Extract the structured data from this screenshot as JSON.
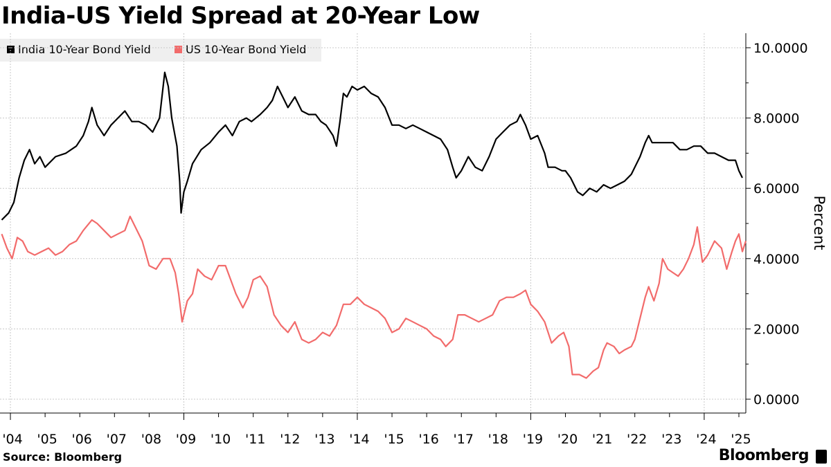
{
  "chart_data": {
    "type": "line",
    "title": "India-US Yield Spread at 20-Year Low",
    "ylabel": "Percent",
    "xlabel": "",
    "ylim": [
      -0.3,
      10.3
    ],
    "y_ticks": [
      "10.0000",
      "8.0000",
      "6.0000",
      "4.0000",
      "2.0000",
      "0.0000"
    ],
    "y_tick_values": [
      10,
      8,
      6,
      4,
      2,
      0
    ],
    "x_ticks": [
      "'04",
      "'05",
      "'06",
      "'07",
      "'08",
      "'09",
      "'10",
      "'11",
      "'12",
      "'13",
      "'14",
      "'15",
      "'16",
      "'17",
      "'18",
      "'19",
      "'20",
      "'21",
      "'22",
      "'23",
      "'24",
      "'25"
    ],
    "x_tick_values": [
      2004,
      2005,
      2006,
      2007,
      2008,
      2009,
      2010,
      2011,
      2012,
      2013,
      2014,
      2015,
      2016,
      2017,
      2018,
      2019,
      2020,
      2021,
      2022,
      2023,
      2024,
      2025
    ],
    "xlim": [
      2003.7,
      2025.2
    ],
    "grid": true,
    "legend_position": "top-left",
    "series": [
      {
        "name": "India 10-Year Bond Yield",
        "color": "#000000",
        "points": [
          [
            2003.75,
            5.1
          ],
          [
            2003.95,
            5.3
          ],
          [
            2004.1,
            5.6
          ],
          [
            2004.25,
            6.3
          ],
          [
            2004.4,
            6.8
          ],
          [
            2004.55,
            7.1
          ],
          [
            2004.7,
            6.7
          ],
          [
            2004.85,
            6.9
          ],
          [
            2005.0,
            6.6
          ],
          [
            2005.3,
            6.9
          ],
          [
            2005.6,
            7.0
          ],
          [
            2005.9,
            7.2
          ],
          [
            2006.1,
            7.5
          ],
          [
            2006.25,
            7.9
          ],
          [
            2006.35,
            8.3
          ],
          [
            2006.5,
            7.8
          ],
          [
            2006.7,
            7.5
          ],
          [
            2006.9,
            7.8
          ],
          [
            2007.1,
            8.0
          ],
          [
            2007.3,
            8.2
          ],
          [
            2007.5,
            7.9
          ],
          [
            2007.7,
            7.9
          ],
          [
            2007.9,
            7.8
          ],
          [
            2008.1,
            7.6
          ],
          [
            2008.3,
            8.0
          ],
          [
            2008.45,
            9.3
          ],
          [
            2008.55,
            8.9
          ],
          [
            2008.65,
            8.0
          ],
          [
            2008.8,
            7.2
          ],
          [
            2008.88,
            6.2
          ],
          [
            2008.92,
            5.3
          ],
          [
            2009.0,
            5.9
          ],
          [
            2009.1,
            6.2
          ],
          [
            2009.25,
            6.7
          ],
          [
            2009.5,
            7.1
          ],
          [
            2009.75,
            7.3
          ],
          [
            2010.0,
            7.6
          ],
          [
            2010.2,
            7.8
          ],
          [
            2010.4,
            7.5
          ],
          [
            2010.6,
            7.9
          ],
          [
            2010.8,
            8.0
          ],
          [
            2010.95,
            7.9
          ],
          [
            2011.2,
            8.1
          ],
          [
            2011.4,
            8.3
          ],
          [
            2011.55,
            8.5
          ],
          [
            2011.7,
            8.9
          ],
          [
            2011.85,
            8.6
          ],
          [
            2012.0,
            8.3
          ],
          [
            2012.2,
            8.6
          ],
          [
            2012.4,
            8.2
          ],
          [
            2012.6,
            8.1
          ],
          [
            2012.8,
            8.1
          ],
          [
            2012.95,
            7.9
          ],
          [
            2013.1,
            7.8
          ],
          [
            2013.3,
            7.5
          ],
          [
            2013.4,
            7.2
          ],
          [
            2013.5,
            7.9
          ],
          [
            2013.6,
            8.7
          ],
          [
            2013.7,
            8.6
          ],
          [
            2013.85,
            8.9
          ],
          [
            2014.0,
            8.8
          ],
          [
            2014.2,
            8.9
          ],
          [
            2014.4,
            8.7
          ],
          [
            2014.6,
            8.6
          ],
          [
            2014.8,
            8.3
          ],
          [
            2015.0,
            7.8
          ],
          [
            2015.2,
            7.8
          ],
          [
            2015.4,
            7.7
          ],
          [
            2015.6,
            7.8
          ],
          [
            2015.8,
            7.7
          ],
          [
            2016.0,
            7.6
          ],
          [
            2016.2,
            7.5
          ],
          [
            2016.4,
            7.4
          ],
          [
            2016.6,
            7.1
          ],
          [
            2016.75,
            6.6
          ],
          [
            2016.85,
            6.3
          ],
          [
            2017.0,
            6.5
          ],
          [
            2017.2,
            6.9
          ],
          [
            2017.4,
            6.6
          ],
          [
            2017.6,
            6.5
          ],
          [
            2017.8,
            6.9
          ],
          [
            2018.0,
            7.4
          ],
          [
            2018.2,
            7.6
          ],
          [
            2018.4,
            7.8
          ],
          [
            2018.6,
            7.9
          ],
          [
            2018.7,
            8.1
          ],
          [
            2018.85,
            7.8
          ],
          [
            2019.0,
            7.4
          ],
          [
            2019.2,
            7.5
          ],
          [
            2019.4,
            7.0
          ],
          [
            2019.5,
            6.6
          ],
          [
            2019.7,
            6.6
          ],
          [
            2019.9,
            6.5
          ],
          [
            2020.0,
            6.5
          ],
          [
            2020.15,
            6.3
          ],
          [
            2020.25,
            6.1
          ],
          [
            2020.35,
            5.9
          ],
          [
            2020.5,
            5.8
          ],
          [
            2020.7,
            6.0
          ],
          [
            2020.9,
            5.9
          ],
          [
            2021.1,
            6.1
          ],
          [
            2021.3,
            6.0
          ],
          [
            2021.5,
            6.1
          ],
          [
            2021.7,
            6.2
          ],
          [
            2021.9,
            6.4
          ],
          [
            2022.0,
            6.6
          ],
          [
            2022.15,
            6.9
          ],
          [
            2022.3,
            7.3
          ],
          [
            2022.4,
            7.5
          ],
          [
            2022.5,
            7.3
          ],
          [
            2022.7,
            7.3
          ],
          [
            2022.9,
            7.3
          ],
          [
            2023.1,
            7.3
          ],
          [
            2023.3,
            7.1
          ],
          [
            2023.5,
            7.1
          ],
          [
            2023.7,
            7.2
          ],
          [
            2023.9,
            7.2
          ],
          [
            2024.1,
            7.0
          ],
          [
            2024.3,
            7.0
          ],
          [
            2024.5,
            6.9
          ],
          [
            2024.7,
            6.8
          ],
          [
            2024.9,
            6.8
          ],
          [
            2025.0,
            6.5
          ],
          [
            2025.1,
            6.3
          ]
        ]
      },
      {
        "name": "US 10-Year Bond Yield",
        "color": "#f26b6b",
        "points": [
          [
            2003.75,
            4.7
          ],
          [
            2003.9,
            4.3
          ],
          [
            2004.05,
            4.0
          ],
          [
            2004.2,
            4.6
          ],
          [
            2004.35,
            4.5
          ],
          [
            2004.5,
            4.2
          ],
          [
            2004.7,
            4.1
          ],
          [
            2004.9,
            4.2
          ],
          [
            2005.1,
            4.3
          ],
          [
            2005.3,
            4.1
          ],
          [
            2005.5,
            4.2
          ],
          [
            2005.7,
            4.4
          ],
          [
            2005.9,
            4.5
          ],
          [
            2006.1,
            4.8
          ],
          [
            2006.35,
            5.1
          ],
          [
            2006.5,
            5.0
          ],
          [
            2006.7,
            4.8
          ],
          [
            2006.9,
            4.6
          ],
          [
            2007.1,
            4.7
          ],
          [
            2007.3,
            4.8
          ],
          [
            2007.45,
            5.2
          ],
          [
            2007.6,
            4.9
          ],
          [
            2007.8,
            4.5
          ],
          [
            2008.0,
            3.8
          ],
          [
            2008.2,
            3.7
          ],
          [
            2008.4,
            4.0
          ],
          [
            2008.6,
            4.0
          ],
          [
            2008.75,
            3.6
          ],
          [
            2008.85,
            3.0
          ],
          [
            2008.95,
            2.2
          ],
          [
            2009.1,
            2.8
          ],
          [
            2009.25,
            3.0
          ],
          [
            2009.4,
            3.7
          ],
          [
            2009.6,
            3.5
          ],
          [
            2009.8,
            3.4
          ],
          [
            2010.0,
            3.8
          ],
          [
            2010.2,
            3.8
          ],
          [
            2010.35,
            3.4
          ],
          [
            2010.5,
            3.0
          ],
          [
            2010.7,
            2.6
          ],
          [
            2010.85,
            2.9
          ],
          [
            2011.0,
            3.4
          ],
          [
            2011.2,
            3.5
          ],
          [
            2011.4,
            3.2
          ],
          [
            2011.6,
            2.4
          ],
          [
            2011.8,
            2.1
          ],
          [
            2012.0,
            1.9
          ],
          [
            2012.2,
            2.2
          ],
          [
            2012.4,
            1.7
          ],
          [
            2012.6,
            1.6
          ],
          [
            2012.8,
            1.7
          ],
          [
            2013.0,
            1.9
          ],
          [
            2013.2,
            1.8
          ],
          [
            2013.4,
            2.1
          ],
          [
            2013.6,
            2.7
          ],
          [
            2013.8,
            2.7
          ],
          [
            2014.0,
            2.9
          ],
          [
            2014.2,
            2.7
          ],
          [
            2014.4,
            2.6
          ],
          [
            2014.6,
            2.5
          ],
          [
            2014.8,
            2.3
          ],
          [
            2015.0,
            1.9
          ],
          [
            2015.2,
            2.0
          ],
          [
            2015.4,
            2.3
          ],
          [
            2015.6,
            2.2
          ],
          [
            2015.8,
            2.1
          ],
          [
            2016.0,
            2.0
          ],
          [
            2016.2,
            1.8
          ],
          [
            2016.4,
            1.7
          ],
          [
            2016.55,
            1.5
          ],
          [
            2016.75,
            1.7
          ],
          [
            2016.9,
            2.4
          ],
          [
            2017.1,
            2.4
          ],
          [
            2017.3,
            2.3
          ],
          [
            2017.5,
            2.2
          ],
          [
            2017.7,
            2.3
          ],
          [
            2017.9,
            2.4
          ],
          [
            2018.1,
            2.8
          ],
          [
            2018.3,
            2.9
          ],
          [
            2018.5,
            2.9
          ],
          [
            2018.7,
            3.0
          ],
          [
            2018.85,
            3.1
          ],
          [
            2019.0,
            2.7
          ],
          [
            2019.2,
            2.5
          ],
          [
            2019.4,
            2.2
          ],
          [
            2019.6,
            1.6
          ],
          [
            2019.8,
            1.8
          ],
          [
            2019.95,
            1.9
          ],
          [
            2020.1,
            1.5
          ],
          [
            2020.2,
            0.7
          ],
          [
            2020.4,
            0.7
          ],
          [
            2020.6,
            0.6
          ],
          [
            2020.8,
            0.8
          ],
          [
            2020.95,
            0.9
          ],
          [
            2021.1,
            1.4
          ],
          [
            2021.2,
            1.6
          ],
          [
            2021.4,
            1.5
          ],
          [
            2021.55,
            1.3
          ],
          [
            2021.7,
            1.4
          ],
          [
            2021.9,
            1.5
          ],
          [
            2022.0,
            1.7
          ],
          [
            2022.15,
            2.3
          ],
          [
            2022.3,
            2.9
          ],
          [
            2022.4,
            3.2
          ],
          [
            2022.55,
            2.8
          ],
          [
            2022.7,
            3.3
          ],
          [
            2022.8,
            4.0
          ],
          [
            2022.95,
            3.7
          ],
          [
            2023.1,
            3.6
          ],
          [
            2023.25,
            3.5
          ],
          [
            2023.4,
            3.7
          ],
          [
            2023.55,
            4.0
          ],
          [
            2023.7,
            4.4
          ],
          [
            2023.8,
            4.9
          ],
          [
            2023.95,
            3.9
          ],
          [
            2024.1,
            4.1
          ],
          [
            2024.3,
            4.5
          ],
          [
            2024.5,
            4.3
          ],
          [
            2024.65,
            3.7
          ],
          [
            2024.8,
            4.2
          ],
          [
            2024.9,
            4.5
          ],
          [
            2025.0,
            4.7
          ],
          [
            2025.1,
            4.2
          ],
          [
            2025.2,
            4.5
          ]
        ]
      }
    ]
  },
  "source": "Source:  Bloomberg",
  "brand": "Bloomberg"
}
